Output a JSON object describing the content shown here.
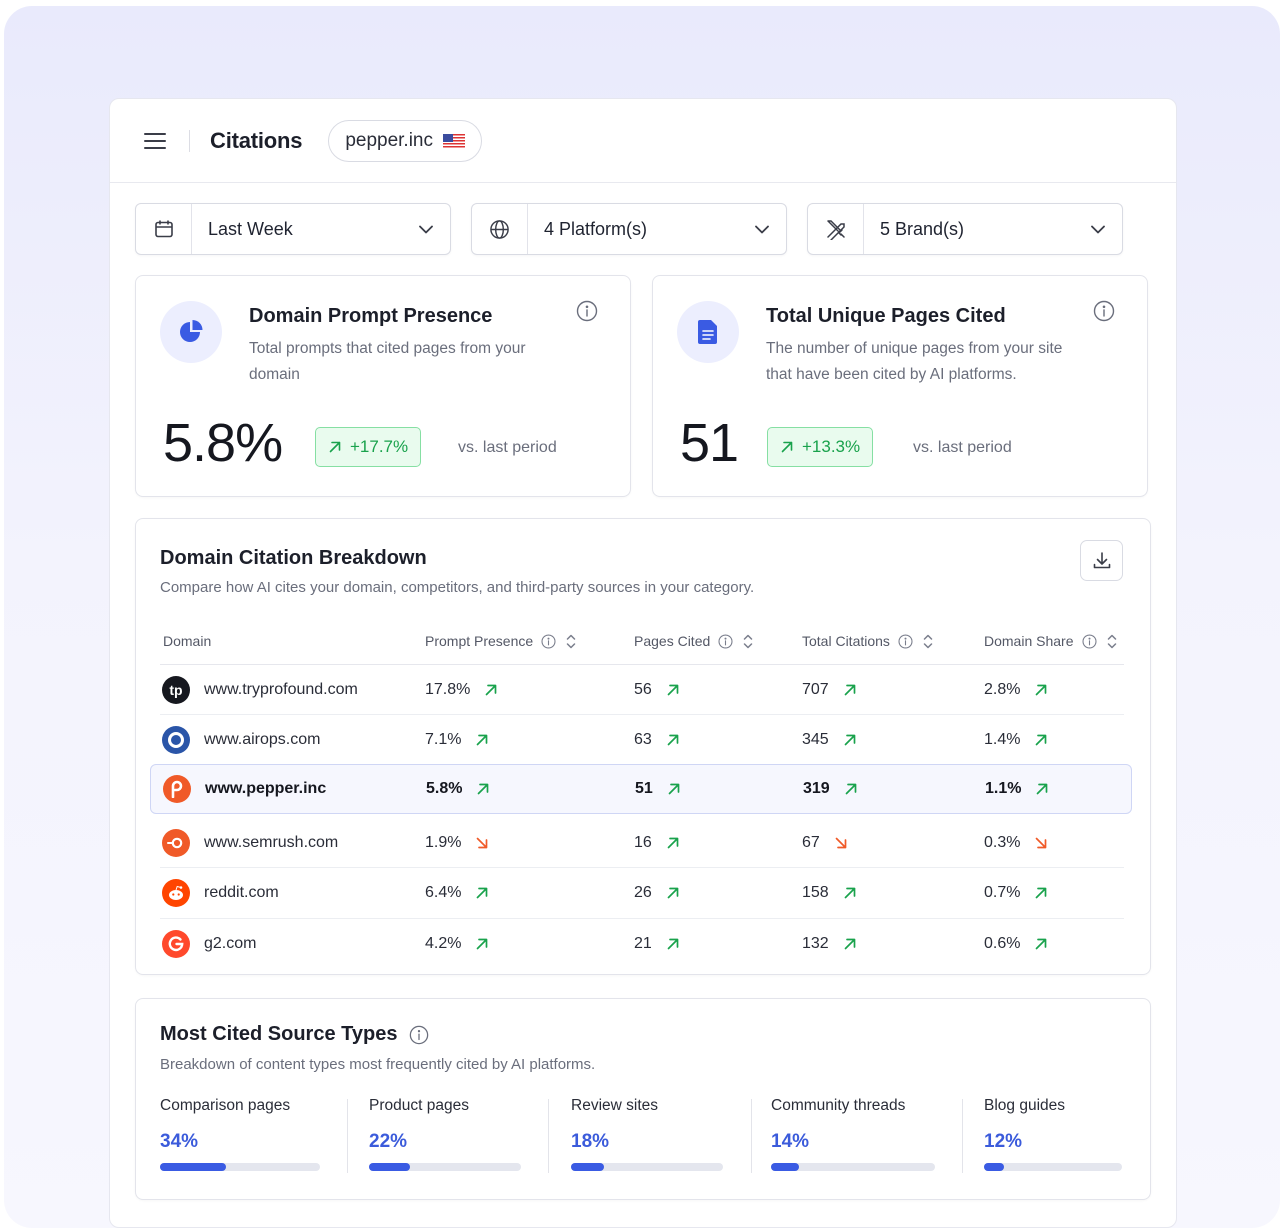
{
  "header": {
    "title": "Citations",
    "domain": "pepper.inc",
    "flag_icon": "us-flag-icon"
  },
  "filters": [
    {
      "icon": "calendar-icon",
      "label": "Last Week"
    },
    {
      "icon": "globe-icon",
      "label": "4 Platform(s)"
    },
    {
      "icon": "swords-icon",
      "label": "5 Brand(s)"
    }
  ],
  "metrics": [
    {
      "icon": "pie-chart-icon",
      "title": "Domain Prompt Presence",
      "description": "Total prompts that cited pages from your domain",
      "value": "5.8%",
      "change": "+17.7%",
      "comparison": "vs. last period"
    },
    {
      "icon": "document-icon",
      "title": "Total Unique Pages Cited",
      "description": "The number of unique pages from your site that have been cited by AI platforms.",
      "value": "51",
      "change": "+13.3%",
      "comparison": "vs. last period"
    }
  ],
  "breakdown": {
    "title": "Domain Citation Breakdown",
    "subtitle": "Compare how AI cites your domain, competitors, and third-party sources in your category.",
    "columns": [
      "Domain",
      "Prompt Presence",
      "Pages Cited",
      "Total Citations",
      "Domain Share"
    ],
    "rows": [
      {
        "domain": "www.tryprofound.com",
        "logo": "tp",
        "prompt_presence": "17.8%",
        "pp_trend": "up",
        "pages_cited": "56",
        "pc_trend": "up",
        "total_citations": "707",
        "tc_trend": "up",
        "domain_share": "2.8%",
        "ds_trend": "up",
        "highlight": false
      },
      {
        "domain": "www.airops.com",
        "logo": "airops",
        "prompt_presence": "7.1%",
        "pp_trend": "up",
        "pages_cited": "63",
        "pc_trend": "up",
        "total_citations": "345",
        "tc_trend": "up",
        "domain_share": "1.4%",
        "ds_trend": "up",
        "highlight": false
      },
      {
        "domain": "www.pepper.inc",
        "logo": "pepper",
        "prompt_presence": "5.8%",
        "pp_trend": "up",
        "pages_cited": "51",
        "pc_trend": "up",
        "total_citations": "319",
        "tc_trend": "up",
        "domain_share": "1.1%",
        "ds_trend": "up",
        "highlight": true
      },
      {
        "domain": "www.semrush.com",
        "logo": "semrush",
        "prompt_presence": "1.9%",
        "pp_trend": "down",
        "pages_cited": "16",
        "pc_trend": "up",
        "total_citations": "67",
        "tc_trend": "down",
        "domain_share": "0.3%",
        "ds_trend": "down",
        "highlight": false
      },
      {
        "domain": "reddit.com",
        "logo": "reddit",
        "prompt_presence": "6.4%",
        "pp_trend": "up",
        "pages_cited": "26",
        "pc_trend": "up",
        "total_citations": "158",
        "tc_trend": "up",
        "domain_share": "0.7%",
        "ds_trend": "up",
        "highlight": false
      },
      {
        "domain": "g2.com",
        "logo": "g2",
        "prompt_presence": "4.2%",
        "pp_trend": "up",
        "pages_cited": "21",
        "pc_trend": "up",
        "total_citations": "132",
        "tc_trend": "up",
        "domain_share": "0.6%",
        "ds_trend": "up",
        "highlight": false
      }
    ]
  },
  "source_types": {
    "title": "Most Cited Source Types",
    "subtitle": "Breakdown of content types most frequently cited by AI platforms.",
    "items": [
      {
        "label": "Comparison pages",
        "value": "34%",
        "fraction": 0.34
      },
      {
        "label": "Product pages",
        "value": "22%",
        "fraction": 0.22
      },
      {
        "label": "Review sites",
        "value": "18%",
        "fraction": 0.18
      },
      {
        "label": "Community threads",
        "value": "14%",
        "fraction": 0.14
      },
      {
        "label": "Blog guides",
        "value": "12%",
        "fraction": 0.12
      }
    ]
  },
  "colors": {
    "accent": "#3a5be3",
    "positive": "#19a24c",
    "negative": "#f05a28",
    "highlight_bg": "#f6f7fe"
  }
}
